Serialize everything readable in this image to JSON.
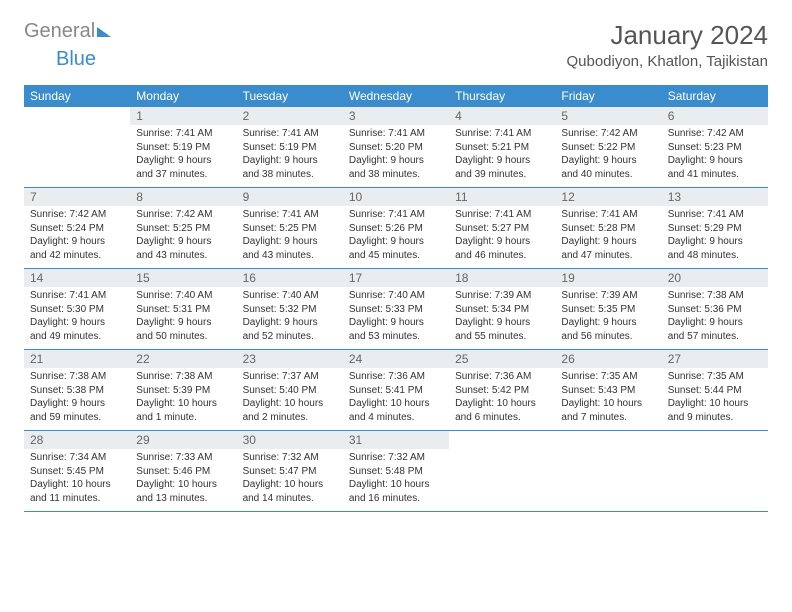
{
  "logo": {
    "part1": "General",
    "part2": "Blue"
  },
  "title": "January 2024",
  "location": "Qubodiyon, Khatlon, Tajikistan",
  "colors": {
    "header_bg": "#3a8ccc",
    "header_text": "#ffffff",
    "daynum_bg": "#e9edef",
    "daynum_text": "#666666",
    "body_text": "#333333",
    "rule": "#3a8ccc"
  },
  "weekdays": [
    "Sunday",
    "Monday",
    "Tuesday",
    "Wednesday",
    "Thursday",
    "Friday",
    "Saturday"
  ],
  "start_offset": 1,
  "days": [
    {
      "n": "1",
      "sunrise": "Sunrise: 7:41 AM",
      "sunset": "Sunset: 5:19 PM",
      "daylight": "Daylight: 9 hours and 37 minutes."
    },
    {
      "n": "2",
      "sunrise": "Sunrise: 7:41 AM",
      "sunset": "Sunset: 5:19 PM",
      "daylight": "Daylight: 9 hours and 38 minutes."
    },
    {
      "n": "3",
      "sunrise": "Sunrise: 7:41 AM",
      "sunset": "Sunset: 5:20 PM",
      "daylight": "Daylight: 9 hours and 38 minutes."
    },
    {
      "n": "4",
      "sunrise": "Sunrise: 7:41 AM",
      "sunset": "Sunset: 5:21 PM",
      "daylight": "Daylight: 9 hours and 39 minutes."
    },
    {
      "n": "5",
      "sunrise": "Sunrise: 7:42 AM",
      "sunset": "Sunset: 5:22 PM",
      "daylight": "Daylight: 9 hours and 40 minutes."
    },
    {
      "n": "6",
      "sunrise": "Sunrise: 7:42 AM",
      "sunset": "Sunset: 5:23 PM",
      "daylight": "Daylight: 9 hours and 41 minutes."
    },
    {
      "n": "7",
      "sunrise": "Sunrise: 7:42 AM",
      "sunset": "Sunset: 5:24 PM",
      "daylight": "Daylight: 9 hours and 42 minutes."
    },
    {
      "n": "8",
      "sunrise": "Sunrise: 7:42 AM",
      "sunset": "Sunset: 5:25 PM",
      "daylight": "Daylight: 9 hours and 43 minutes."
    },
    {
      "n": "9",
      "sunrise": "Sunrise: 7:41 AM",
      "sunset": "Sunset: 5:25 PM",
      "daylight": "Daylight: 9 hours and 43 minutes."
    },
    {
      "n": "10",
      "sunrise": "Sunrise: 7:41 AM",
      "sunset": "Sunset: 5:26 PM",
      "daylight": "Daylight: 9 hours and 45 minutes."
    },
    {
      "n": "11",
      "sunrise": "Sunrise: 7:41 AM",
      "sunset": "Sunset: 5:27 PM",
      "daylight": "Daylight: 9 hours and 46 minutes."
    },
    {
      "n": "12",
      "sunrise": "Sunrise: 7:41 AM",
      "sunset": "Sunset: 5:28 PM",
      "daylight": "Daylight: 9 hours and 47 minutes."
    },
    {
      "n": "13",
      "sunrise": "Sunrise: 7:41 AM",
      "sunset": "Sunset: 5:29 PM",
      "daylight": "Daylight: 9 hours and 48 minutes."
    },
    {
      "n": "14",
      "sunrise": "Sunrise: 7:41 AM",
      "sunset": "Sunset: 5:30 PM",
      "daylight": "Daylight: 9 hours and 49 minutes."
    },
    {
      "n": "15",
      "sunrise": "Sunrise: 7:40 AM",
      "sunset": "Sunset: 5:31 PM",
      "daylight": "Daylight: 9 hours and 50 minutes."
    },
    {
      "n": "16",
      "sunrise": "Sunrise: 7:40 AM",
      "sunset": "Sunset: 5:32 PM",
      "daylight": "Daylight: 9 hours and 52 minutes."
    },
    {
      "n": "17",
      "sunrise": "Sunrise: 7:40 AM",
      "sunset": "Sunset: 5:33 PM",
      "daylight": "Daylight: 9 hours and 53 minutes."
    },
    {
      "n": "18",
      "sunrise": "Sunrise: 7:39 AM",
      "sunset": "Sunset: 5:34 PM",
      "daylight": "Daylight: 9 hours and 55 minutes."
    },
    {
      "n": "19",
      "sunrise": "Sunrise: 7:39 AM",
      "sunset": "Sunset: 5:35 PM",
      "daylight": "Daylight: 9 hours and 56 minutes."
    },
    {
      "n": "20",
      "sunrise": "Sunrise: 7:38 AM",
      "sunset": "Sunset: 5:36 PM",
      "daylight": "Daylight: 9 hours and 57 minutes."
    },
    {
      "n": "21",
      "sunrise": "Sunrise: 7:38 AM",
      "sunset": "Sunset: 5:38 PM",
      "daylight": "Daylight: 9 hours and 59 minutes."
    },
    {
      "n": "22",
      "sunrise": "Sunrise: 7:38 AM",
      "sunset": "Sunset: 5:39 PM",
      "daylight": "Daylight: 10 hours and 1 minute."
    },
    {
      "n": "23",
      "sunrise": "Sunrise: 7:37 AM",
      "sunset": "Sunset: 5:40 PM",
      "daylight": "Daylight: 10 hours and 2 minutes."
    },
    {
      "n": "24",
      "sunrise": "Sunrise: 7:36 AM",
      "sunset": "Sunset: 5:41 PM",
      "daylight": "Daylight: 10 hours and 4 minutes."
    },
    {
      "n": "25",
      "sunrise": "Sunrise: 7:36 AM",
      "sunset": "Sunset: 5:42 PM",
      "daylight": "Daylight: 10 hours and 6 minutes."
    },
    {
      "n": "26",
      "sunrise": "Sunrise: 7:35 AM",
      "sunset": "Sunset: 5:43 PM",
      "daylight": "Daylight: 10 hours and 7 minutes."
    },
    {
      "n": "27",
      "sunrise": "Sunrise: 7:35 AM",
      "sunset": "Sunset: 5:44 PM",
      "daylight": "Daylight: 10 hours and 9 minutes."
    },
    {
      "n": "28",
      "sunrise": "Sunrise: 7:34 AM",
      "sunset": "Sunset: 5:45 PM",
      "daylight": "Daylight: 10 hours and 11 minutes."
    },
    {
      "n": "29",
      "sunrise": "Sunrise: 7:33 AM",
      "sunset": "Sunset: 5:46 PM",
      "daylight": "Daylight: 10 hours and 13 minutes."
    },
    {
      "n": "30",
      "sunrise": "Sunrise: 7:32 AM",
      "sunset": "Sunset: 5:47 PM",
      "daylight": "Daylight: 10 hours and 14 minutes."
    },
    {
      "n": "31",
      "sunrise": "Sunrise: 7:32 AM",
      "sunset": "Sunset: 5:48 PM",
      "daylight": "Daylight: 10 hours and 16 minutes."
    }
  ]
}
